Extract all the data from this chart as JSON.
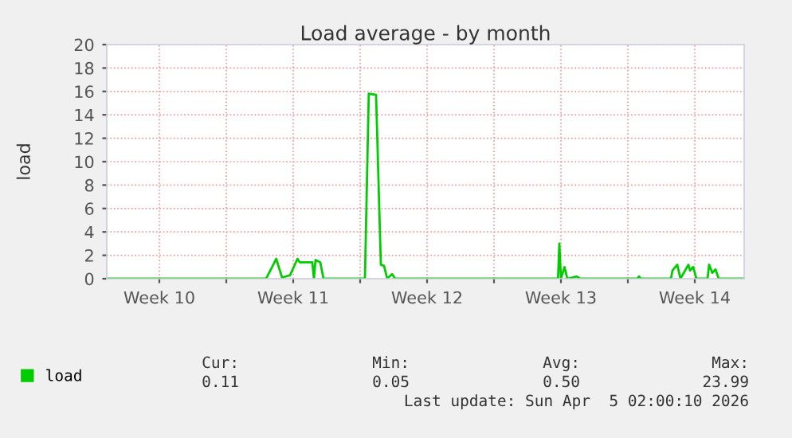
{
  "chart_data": {
    "type": "line",
    "title": "Load average - by month",
    "ylabel": "load",
    "series": [
      {
        "name": "load",
        "color": "#00cc00",
        "x": [
          "2026-03-02T18:00",
          "2026-03-11T02:00",
          "2026-03-11T14:40",
          "2026-03-11T22:00",
          "2026-03-12T08:00",
          "2026-03-12T17:20",
          "2026-03-12T20:20",
          "2026-03-13T12:00",
          "2026-03-13T14:00",
          "2026-03-13T16:00",
          "2026-03-13T22:00",
          "2026-03-14T02:00",
          "2026-03-16T06:00",
          "2026-03-16T10:50",
          "2026-03-16T20:00",
          "2026-03-17T02:00",
          "2026-03-17T06:00",
          "2026-03-17T10:00",
          "2026-03-17T16:00",
          "2026-03-17T20:00",
          "2026-03-26T08:20",
          "2026-03-26T10:00",
          "2026-03-26T12:00",
          "2026-03-26T16:30",
          "2026-03-26T20:00",
          "2026-03-27T08:00",
          "2026-03-27T12:00",
          "2026-03-30T12:00",
          "2026-03-30T14:00",
          "2026-03-30T16:00",
          "2026-04-01T06:00",
          "2026-04-01T08:00",
          "2026-04-01T14:00",
          "2026-04-01T18:00",
          "2026-04-02T04:00",
          "2026-04-02T06:00",
          "2026-04-02T10:00",
          "2026-04-02T14:00",
          "2026-04-02T18:00",
          "2026-04-03T04:00",
          "2026-04-03T06:00",
          "2026-04-03T10:00",
          "2026-04-03T14:00",
          "2026-04-03T18:00",
          "2026-04-05T00:00"
        ],
        "values": [
          0,
          0,
          1.7,
          0.1,
          0.3,
          1.7,
          1.4,
          1.4,
          0,
          1.6,
          1.4,
          0,
          0,
          15.8,
          15.7,
          1.2,
          1.1,
          0,
          0.4,
          0,
          0,
          3.0,
          0,
          1.0,
          0,
          0.2,
          0,
          0,
          0.2,
          0,
          0,
          0.7,
          1.2,
          0,
          1.2,
          0.7,
          1.0,
          0,
          0,
          0,
          1.2,
          0.5,
          0.8,
          0,
          0
        ]
      }
    ],
    "xlim": [
      "2026-03-02T18:00",
      "2026-04-05T02:00"
    ],
    "xticks": [
      {
        "value": "2026-03-05T12:00",
        "label": "Week 10"
      },
      {
        "value": "2026-03-09",
        "label": null
      },
      {
        "value": "2026-03-12T12:00",
        "label": "Week 11"
      },
      {
        "value": "2026-03-16",
        "label": null
      },
      {
        "value": "2026-03-19T12:00",
        "label": "Week 12"
      },
      {
        "value": "2026-03-23",
        "label": null
      },
      {
        "value": "2026-03-26T12:00",
        "label": "Week 13"
      },
      {
        "value": "2026-03-30",
        "label": null
      },
      {
        "value": "2026-04-02T12:00",
        "label": "Week 14"
      }
    ],
    "ylim": [
      0,
      20
    ],
    "yticks": [
      0,
      2,
      4,
      6,
      8,
      10,
      12,
      14,
      16,
      18,
      20
    ],
    "grid": true,
    "legend": "bottom left",
    "marker": "none",
    "line_style": "solid",
    "annotations": [
      "Cur:",
      "0.11",
      "Min:",
      "0.05",
      "Avg:",
      "0.50",
      "Max:",
      "23.99",
      "Last update: Sun Apr  5 02:00:10 2026"
    ]
  }
}
